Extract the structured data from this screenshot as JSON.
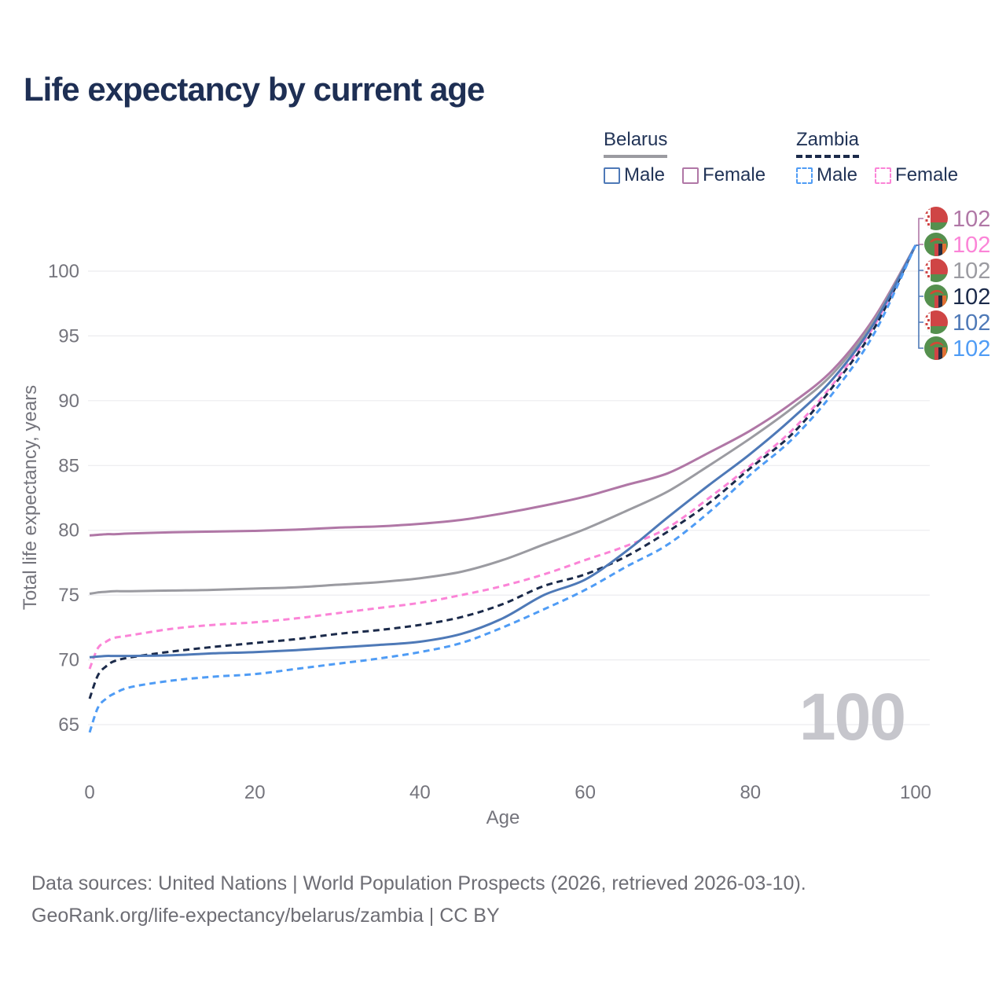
{
  "title": "Life expectancy by current age",
  "watermark": "100",
  "legend": {
    "groups": [
      {
        "country": "Belarus",
        "underline_style": "solid",
        "underline_color": "#9b9ba1",
        "items": [
          {
            "label": "Male",
            "color": "#4e79b7",
            "dash": false
          },
          {
            "label": "Female",
            "color": "#b077a6",
            "dash": false
          }
        ]
      },
      {
        "country": "Zambia",
        "underline_style": "dashed",
        "underline_color": "#1b2a4a",
        "items": [
          {
            "label": "Male",
            "color": "#4f9cf5",
            "dash": true
          },
          {
            "label": "Female",
            "color": "#fb84d7",
            "dash": true
          }
        ]
      }
    ]
  },
  "footer": {
    "line1": "Data sources: United Nations | World Population Prospects (2026, retrieved 2026-03-10).",
    "line2": "GeoRank.org/life-expectancy/belarus/zambia | CC BY"
  },
  "chart_data": {
    "type": "line",
    "title": "Life expectancy by current age",
    "xlabel": "Age",
    "ylabel": "Total life expectancy, years",
    "x_ticks": [
      0,
      20,
      40,
      60,
      80,
      100
    ],
    "y_ticks": [
      65,
      70,
      75,
      80,
      85,
      90,
      95,
      100
    ],
    "xlim": [
      0,
      100
    ],
    "ylim": [
      63,
      103.5
    ],
    "grid": "horizontal",
    "legend_position": "top-right",
    "current_age_indicator": "100",
    "x": [
      0,
      1,
      2,
      3,
      5,
      10,
      15,
      20,
      25,
      30,
      35,
      40,
      45,
      50,
      55,
      60,
      65,
      70,
      75,
      80,
      85,
      90,
      95,
      100
    ],
    "series": [
      {
        "name": "Belarus Female",
        "country": "Belarus",
        "sex": "Female",
        "color": "#b077a6",
        "dash": false,
        "end_label": "102",
        "values": [
          79.6,
          79.65,
          79.7,
          79.7,
          79.75,
          79.85,
          79.9,
          79.95,
          80.05,
          80.2,
          80.3,
          80.5,
          80.8,
          81.3,
          81.9,
          82.6,
          83.5,
          84.4,
          86.0,
          87.7,
          89.8,
          92.4,
          96.4,
          102
        ]
      },
      {
        "name": "Zambia Female",
        "country": "Zambia",
        "sex": "Female",
        "color": "#fb84d7",
        "dash": true,
        "end_label": "102",
        "values": [
          69.3,
          70.9,
          71.4,
          71.7,
          71.9,
          72.4,
          72.7,
          72.9,
          73.2,
          73.6,
          74.0,
          74.4,
          75.0,
          75.7,
          76.6,
          77.7,
          78.8,
          80.2,
          82.5,
          85.0,
          87.7,
          91.3,
          95.8,
          102
        ]
      },
      {
        "name": "Belarus Total",
        "country": "Belarus",
        "sex": "Total",
        "color": "#9b9ba1",
        "dash": false,
        "end_label": "102",
        "values": [
          75.1,
          75.2,
          75.25,
          75.3,
          75.3,
          75.35,
          75.4,
          75.5,
          75.6,
          75.8,
          76.0,
          76.3,
          76.8,
          77.7,
          78.9,
          80.1,
          81.5,
          83.0,
          85.0,
          87.1,
          89.4,
          92.1,
          96.2,
          102
        ]
      },
      {
        "name": "Zambia Total",
        "country": "Zambia",
        "sex": "Total",
        "color": "#1b2a4a",
        "dash": true,
        "end_label": "102",
        "values": [
          67.0,
          68.8,
          69.5,
          69.9,
          70.2,
          70.65,
          71.0,
          71.3,
          71.6,
          72.0,
          72.3,
          72.7,
          73.3,
          74.3,
          75.7,
          76.6,
          78.0,
          79.9,
          82.1,
          84.8,
          87.4,
          91.1,
          95.6,
          102
        ]
      },
      {
        "name": "Belarus Male",
        "country": "Belarus",
        "sex": "Male",
        "color": "#4e79b7",
        "dash": false,
        "end_label": "102",
        "values": [
          70.2,
          70.25,
          70.3,
          70.3,
          70.3,
          70.35,
          70.5,
          70.6,
          70.75,
          70.95,
          71.15,
          71.4,
          72.0,
          73.2,
          75.0,
          76.2,
          78.4,
          81.0,
          83.5,
          85.9,
          88.6,
          91.7,
          96.0,
          102
        ]
      },
      {
        "name": "Zambia Male",
        "country": "Zambia",
        "sex": "Male",
        "color": "#4f9cf5",
        "dash": true,
        "end_label": "102",
        "values": [
          64.4,
          66.3,
          67.0,
          67.4,
          67.9,
          68.4,
          68.7,
          68.9,
          69.3,
          69.7,
          70.1,
          70.6,
          71.3,
          72.5,
          73.9,
          75.4,
          77.2,
          78.9,
          81.4,
          84.3,
          87.0,
          90.6,
          95.2,
          102
        ]
      }
    ]
  }
}
